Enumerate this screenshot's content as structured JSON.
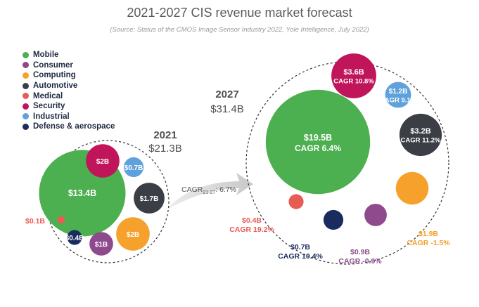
{
  "chart_data": {
    "type": "bubble",
    "title": "2021-2027 CIS revenue market forecast",
    "subtitle": "(Source: Status of the CMOS Image Sensor Industry 2022, Yole Intelligence, July 2022)",
    "legend": [
      {
        "name": "Mobile",
        "color": "#4caf50"
      },
      {
        "name": "Consumer",
        "color": "#8e4a8c"
      },
      {
        "name": "Computing",
        "color": "#f5a12b"
      },
      {
        "name": "Automotive",
        "color": "#3b3f45"
      },
      {
        "name": "Medical",
        "color": "#e95b55"
      },
      {
        "name": "Security",
        "color": "#c0155a"
      },
      {
        "name": "Industrial",
        "color": "#5fa1dc"
      },
      {
        "name": "Defense & aerospace",
        "color": "#1a2b5e"
      }
    ],
    "groups": [
      {
        "year": "2021",
        "total": "$21.3B",
        "total_value": 21.3,
        "segments": [
          {
            "name": "Mobile",
            "value": 13.4,
            "label": "$13.4B",
            "cagr": ""
          },
          {
            "name": "Security",
            "value": 2.0,
            "label": "$2B",
            "cagr": ""
          },
          {
            "name": "Industrial",
            "value": 0.7,
            "label": "$0.7B",
            "cagr": ""
          },
          {
            "name": "Automotive",
            "value": 1.7,
            "label": "$1.7B",
            "cagr": ""
          },
          {
            "name": "Computing",
            "value": 2.0,
            "label": "$2B",
            "cagr": ""
          },
          {
            "name": "Consumer",
            "value": 1.0,
            "label": "$1B",
            "cagr": ""
          },
          {
            "name": "Defense & aerospace",
            "value": 0.4,
            "label": "$0.4B",
            "cagr": ""
          },
          {
            "name": "Medical",
            "value": 0.1,
            "label": "$0.1B",
            "cagr": ""
          }
        ]
      },
      {
        "year": "2027",
        "total": "$31.4B",
        "total_value": 31.4,
        "segments": [
          {
            "name": "Mobile",
            "value": 19.5,
            "label": "$19.5B",
            "cagr": "CAGR 6.4%"
          },
          {
            "name": "Security",
            "value": 3.6,
            "label": "$3.6B",
            "cagr": "CAGR 10.8%"
          },
          {
            "name": "Industrial",
            "value": 1.2,
            "label": "$1.2B",
            "cagr": "CAGR 9.1%"
          },
          {
            "name": "Automotive",
            "value": 3.2,
            "label": "$3.2B",
            "cagr": "CAGR 11.2%"
          },
          {
            "name": "Computing",
            "value": 1.9,
            "label": "$1.9B",
            "cagr": "CAGR -1.5%"
          },
          {
            "name": "Consumer",
            "value": 0.9,
            "label": "$0.9B",
            "cagr": "CAGR -0.9%"
          },
          {
            "name": "Defense & aerospace",
            "value": 0.7,
            "label": "$0.7B",
            "cagr": "CAGR 10.4%"
          },
          {
            "name": "Medical",
            "value": 0.4,
            "label": "$0.4B",
            "cagr": "CAGR 19.2%"
          }
        ]
      }
    ],
    "overall_cagr_label": "CAGR",
    "overall_cagr_period": "21-27",
    "overall_cagr_value": ": 6.7%"
  }
}
